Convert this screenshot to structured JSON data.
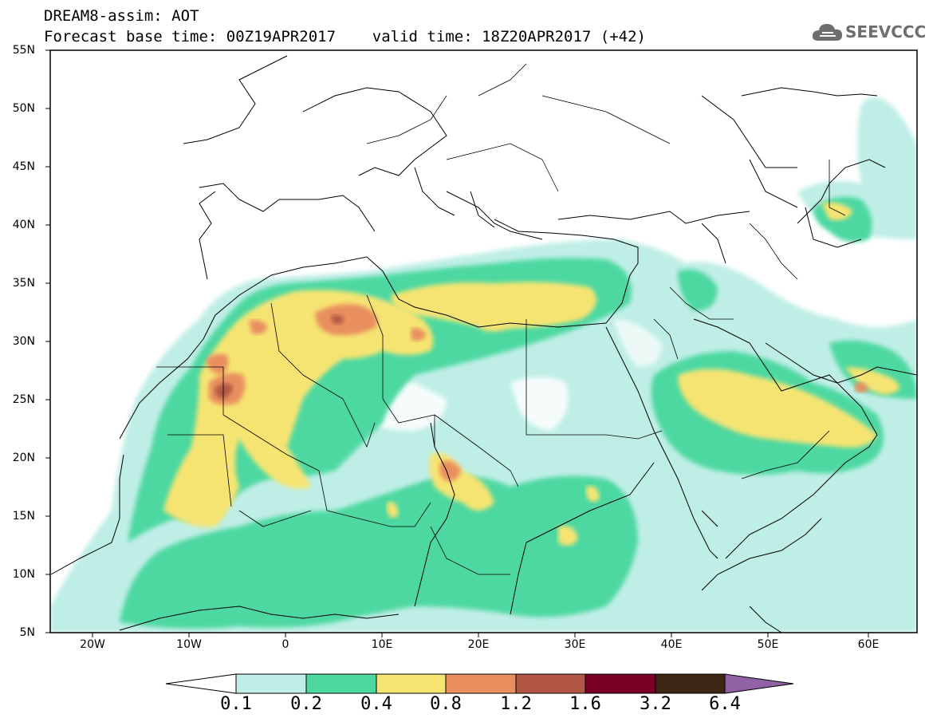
{
  "title": {
    "line1": "DREAM8-assim: AOT",
    "line2": "Forecast base time: 00Z19APR2017    valid time: 18Z20APR2017 (+42)"
  },
  "logo": {
    "text": "SEEVCCC",
    "icon": "cloud-icon"
  },
  "axes": {
    "lat_labels": [
      "55N",
      "50N",
      "45N",
      "40N",
      "35N",
      "30N",
      "25N",
      "20N",
      "15N",
      "10N",
      "5N"
    ],
    "lon_labels": [
      "20W",
      "10W",
      "0",
      "10E",
      "20E",
      "30E",
      "40E",
      "50E",
      "60E"
    ]
  },
  "colorbar": {
    "labels": [
      "0.1",
      "0.2",
      "0.4",
      "0.8",
      "1.2",
      "1.6",
      "3.2",
      "6.4"
    ],
    "colors": [
      "#ffffff",
      "#bfeee6",
      "#4ed8a1",
      "#f6e472",
      "#e98f5f",
      "#b25645",
      "#7a0026",
      "#3d2614",
      "#8e62a4"
    ]
  }
}
